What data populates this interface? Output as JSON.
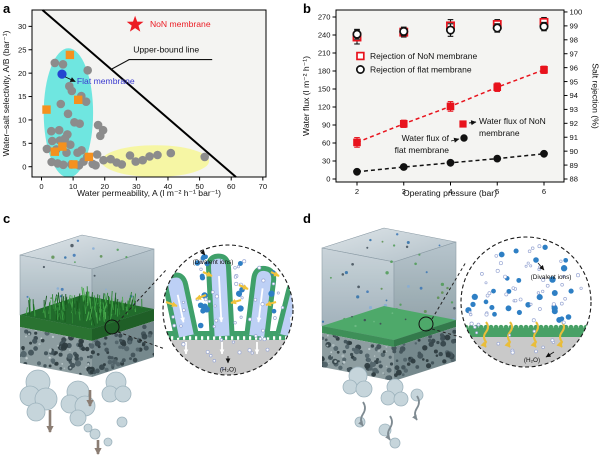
{
  "panel_letters": {
    "a": "a",
    "b": "b",
    "c": "c",
    "d": "d"
  },
  "chart_data": [
    {
      "id": "a",
      "type": "scatter",
      "xlabel": "Water permeability, A (l m⁻² h⁻¹ bar⁻¹)",
      "ylabel": "Water–salt selectivity, A/B (bar⁻¹)",
      "xlim": [
        -3,
        71
      ],
      "ylim": [
        -2.2,
        33.5
      ],
      "xticks": [
        0,
        10,
        20,
        30,
        40,
        50,
        60,
        70
      ],
      "yticks": [
        0,
        5,
        10,
        15,
        20,
        25,
        30
      ],
      "plot_bg": "#f4f4f2",
      "grid": false,
      "legend_position": "none",
      "regions": [
        {
          "name": "cyan-cluster-region",
          "shape": "ellipse",
          "cx": 8.5,
          "cy": 11.5,
          "rx": 7.8,
          "ry": 13.8,
          "color": "#6fe6e0"
        },
        {
          "name": "yellow-cluster-region",
          "shape": "ellipse",
          "cx": 36,
          "cy": 1.2,
          "rx": 17,
          "ry": 3.4,
          "color": "#f6f6a4"
        }
      ],
      "upper_bound_line": {
        "label": "Upper-bound line",
        "x1": 0.3,
        "y1": 33.5,
        "x2": 61.5,
        "y2": -2.2,
        "color": "#000000",
        "label_x": 29,
        "label_y": 24.4,
        "pointer": [
          [
            54,
            22.9
          ],
          [
            27.7,
            22.9
          ],
          [
            22,
            20.8
          ]
        ]
      },
      "series": [
        {
          "name": "reported-membranes-circles",
          "marker": "circle",
          "color": "#8c8c8c",
          "points": [
            [
              4.2,
              22.2
            ],
            [
              6.8,
              21.9
            ],
            [
              14.6,
              20.6
            ],
            [
              8.8,
              17.2
            ],
            [
              9.6,
              16.2
            ],
            [
              12.6,
              15.1
            ],
            [
              14.1,
              13.9
            ],
            [
              6.1,
              13.4
            ],
            [
              8.4,
              11.3
            ],
            [
              10.4,
              9.5
            ],
            [
              12.1,
              9.2
            ],
            [
              3.1,
              7.6
            ],
            [
              5.6,
              7.8
            ],
            [
              8.2,
              6.9
            ],
            [
              3.4,
              5.5
            ],
            [
              5.8,
              5.6
            ],
            [
              7.4,
              6.0
            ],
            [
              9.1,
              4.7
            ],
            [
              4.7,
              3.7
            ],
            [
              1.7,
              3.8
            ],
            [
              7.9,
              3.0
            ],
            [
              11.4,
              3.0
            ],
            [
              12.7,
              3.5
            ],
            [
              3.2,
              1.0
            ],
            [
              5.1,
              0.7
            ],
            [
              6.9,
              0.4
            ],
            [
              9.5,
              0.5
            ],
            [
              11.9,
              0.3
            ],
            [
              13.3,
              1.1
            ],
            [
              14.5,
              2.1
            ],
            [
              16.2,
              0.6
            ],
            [
              17.6,
              2.6
            ],
            [
              19.6,
              1.4
            ],
            [
              17.1,
              0.3
            ],
            [
              17.9,
              8.9
            ],
            [
              19.5,
              7.8
            ],
            [
              18.6,
              6.6
            ],
            [
              21.9,
              1.6
            ],
            [
              23.8,
              0.9
            ],
            [
              25.4,
              0.5
            ],
            [
              28.0,
              2.4
            ],
            [
              29.8,
              1.1
            ],
            [
              32.0,
              1.4
            ],
            [
              34.2,
              2.2
            ],
            [
              36.7,
              2.5
            ],
            [
              40.9,
              2.9
            ],
            [
              51.6,
              2.1
            ]
          ]
        },
        {
          "name": "reported-membranes-squares",
          "marker": "square",
          "color": "#f5911e",
          "points": [
            [
              9.0,
              23.9
            ],
            [
              1.6,
              12.2
            ],
            [
              11.6,
              14.3
            ],
            [
              4.2,
              3.2
            ],
            [
              6.6,
              4.3
            ],
            [
              10.1,
              0.5
            ],
            [
              15.0,
              2.1
            ]
          ]
        },
        {
          "name": "flat-membrane",
          "marker": "circle",
          "color": "#2444d0",
          "points": [
            [
              6.5,
              19.8
            ]
          ],
          "label": {
            "text": "Flat membrane",
            "x": 11.2,
            "y": 17.7,
            "color": "#3a3ad0",
            "arrow": [
              [
                7.5,
                19.2
              ],
              [
                10.7,
                18.2
              ]
            ]
          }
        },
        {
          "name": "non-membrane",
          "marker": "star",
          "color": "#ec1c24",
          "points": [
            [
              29.6,
              30.4
            ]
          ],
          "label": {
            "text": "NoN membrane",
            "x": 34.3,
            "y": 29.9,
            "color": "#ec1c24"
          }
        }
      ]
    },
    {
      "id": "b",
      "type": "line",
      "xlabel": "Operating pressure (bar)",
      "ylabel_left": "Water flux (l m⁻² h⁻¹)",
      "ylabel_right": "Salt rejection (%)",
      "x": [
        2,
        3,
        4,
        5,
        6
      ],
      "ylim_left": [
        0,
        281
      ],
      "ylim_right": [
        88,
        100.2
      ],
      "yticks_left": [
        0,
        30,
        60,
        90,
        120,
        150,
        180,
        210,
        240,
        270
      ],
      "yticks_right": [
        88,
        89,
        90,
        91,
        92,
        93,
        94,
        95,
        96,
        97,
        98,
        99,
        100
      ],
      "plot_bg": "#f4f4f2",
      "grid": false,
      "legend_position": "upper-left-inside",
      "series": [
        {
          "name": "Rejection of NoN membrane",
          "axis": "right",
          "marker": "open-square",
          "color": "#e8121c",
          "error_color": "#111111",
          "line": "none",
          "in_legend": true,
          "values": [
            98.2,
            98.55,
            99.0,
            99.1,
            99.25
          ],
          "errors": [
            0.5,
            0.35,
            0.45,
            0.35,
            0.35
          ]
        },
        {
          "name": "Rejection of flat membrane",
          "axis": "right",
          "marker": "open-circle",
          "color": "#111111",
          "error_color": "#111111",
          "line": "none",
          "in_legend": true,
          "values": [
            98.4,
            98.6,
            98.7,
            98.85,
            98.95
          ],
          "errors": [
            0.35,
            0.3,
            0.45,
            0.3,
            0.3
          ]
        },
        {
          "name": "Water flux of NoN membrane",
          "axis": "left",
          "marker": "square",
          "color": "#e8121c",
          "error_color": "#e8121c",
          "line": "dashed",
          "in_legend": false,
          "values": [
            61,
            92,
            121,
            153,
            182
          ],
          "errors": [
            8,
            6,
            8,
            7,
            6
          ]
        },
        {
          "name": "Water flux of flat membrane",
          "axis": "left",
          "marker": "circle",
          "color": "#111111",
          "error_color": "#111111",
          "line": "dashed",
          "in_legend": false,
          "values": [
            12,
            20,
            27,
            34,
            42
          ],
          "errors": [
            2,
            2,
            2,
            2,
            2
          ]
        }
      ],
      "annotations": [
        {
          "lines": [
            "Water flux of NoN",
            "membrane"
          ],
          "color": "#111111",
          "glyph": "square",
          "glyph_color": "#e8121c"
        },
        {
          "lines": [
            "Water flux of",
            "flat membrane"
          ],
          "color": "#111111",
          "glyph": "circle",
          "glyph_color": "#111111"
        }
      ]
    }
  ],
  "illustrations": {
    "c": {
      "ions_label": "(Divalent ions)",
      "water_label": "(H₂O)"
    },
    "d": {
      "ions_label": "(Divalent ions)",
      "water_label": "(H₂O)"
    }
  }
}
